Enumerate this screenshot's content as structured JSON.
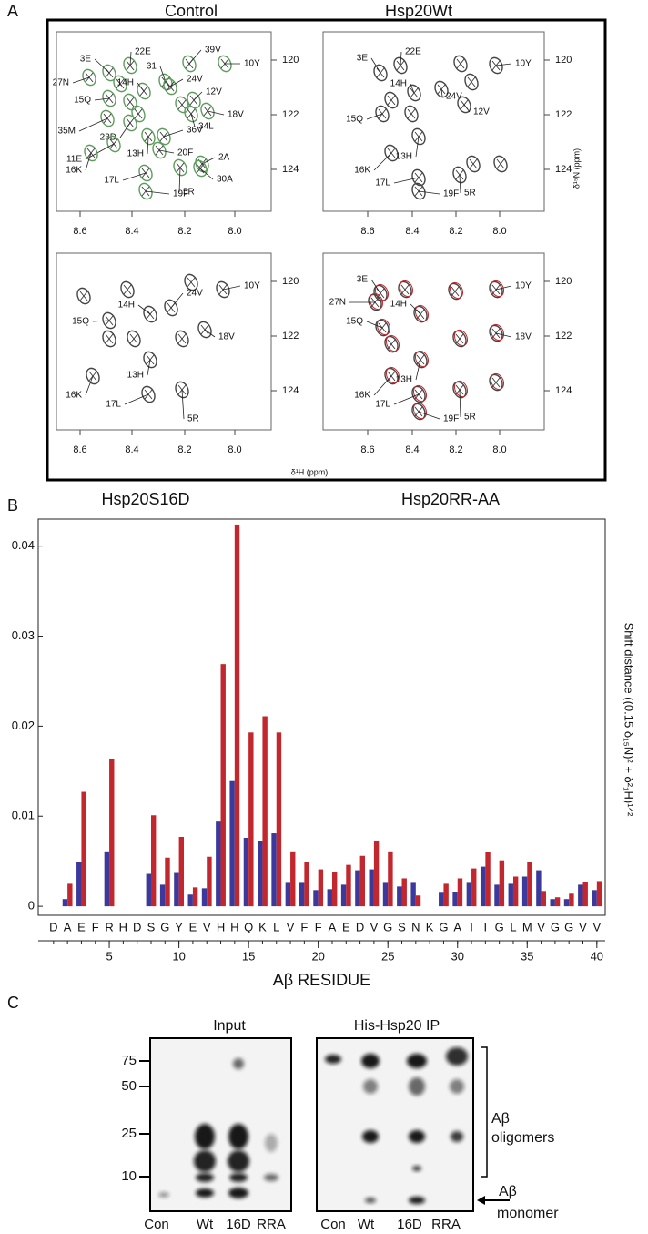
{
  "panel_a": {
    "label": "A",
    "spectra": [
      {
        "title": "Control",
        "peaks": [
          "3E",
          "22E",
          "39V",
          "10Y",
          "31",
          "24V",
          "14H",
          "27N",
          "15Q",
          "12V",
          "18V",
          "35M",
          "23D",
          "36V",
          "34L",
          "11E",
          "13H",
          "20F",
          "2A",
          "16K",
          "17L",
          "30A",
          "19F",
          "5R"
        ]
      },
      {
        "title": "Hsp20Wt",
        "peaks": [
          "3E",
          "22E",
          "10Y",
          "24V",
          "14H",
          "12V",
          "15Q",
          "13H",
          "16K",
          "17L",
          "19F",
          "5R"
        ]
      },
      {
        "title": "Hsp20S16D",
        "peaks": [
          "10Y",
          "24V",
          "14H",
          "15Q",
          "18V",
          "13H",
          "16K",
          "17L",
          "5R"
        ]
      },
      {
        "title": "Hsp20RR-AA",
        "peaks": [
          "3E",
          "27N",
          "10Y",
          "14H",
          "15Q",
          "18V",
          "13H",
          "16K",
          "17L",
          "19F",
          "5R"
        ]
      }
    ],
    "x_axis_label": "δ¹H (ppm)",
    "y_axis_label": "δ¹⁵N (ppm)",
    "xticks": [
      "8.6",
      "8.4",
      "8.2",
      "8.0"
    ],
    "yticks": [
      "120",
      "122",
      "124"
    ]
  },
  "panel_b_label": "B",
  "chart_data": {
    "type": "bar",
    "x": [
      1,
      2,
      3,
      4,
      5,
      6,
      7,
      8,
      9,
      10,
      11,
      12,
      13,
      14,
      15,
      16,
      17,
      18,
      19,
      20,
      21,
      22,
      23,
      24,
      25,
      26,
      27,
      28,
      29,
      30,
      31,
      32,
      33,
      34,
      35,
      36,
      37,
      38,
      39,
      40
    ],
    "residue_labels": [
      "D",
      "A",
      "E",
      "F",
      "R",
      "H",
      "D",
      "S",
      "G",
      "Y",
      "E",
      "V",
      "H",
      "H",
      "Q",
      "K",
      "L",
      "V",
      "F",
      "F",
      "A",
      "E",
      "D",
      "V",
      "G",
      "S",
      "N",
      "K",
      "G",
      "A",
      "I",
      "I",
      "G",
      "L",
      "M",
      "V",
      "G",
      "G",
      "V",
      "V"
    ],
    "xlim": [
      -0.1,
      40.6
    ],
    "xticks": [
      5,
      10,
      15,
      20,
      25,
      30,
      35,
      40
    ],
    "ylim": [
      -0.001,
      0.043
    ],
    "yticks": [
      0,
      0.01,
      0.02,
      0.03,
      0.04
    ],
    "x_axis_label": "Aβ RESIDUE",
    "y_axis_label": "Shift distance ((0.15 δ₁₅N)² + δ²₁H)¹ᐟ²",
    "series": [
      {
        "color": "#3b3a9c",
        "values": [
          null,
          0.0008,
          0.0049,
          null,
          0.0061,
          null,
          null,
          0.0036,
          0.0024,
          0.0037,
          0.0013,
          0.002,
          0.0094,
          0.0139,
          0.0076,
          0.0072,
          0.0081,
          0.0026,
          0.0026,
          0.0018,
          0.0019,
          0.0024,
          0.004,
          0.0041,
          0.0026,
          0.0022,
          0.0026,
          null,
          0.0015,
          0.0016,
          0.0026,
          0.0044,
          0.0024,
          0.0025,
          0.0033,
          0.004,
          0.0008,
          0.0008,
          0.0024,
          0.0018
        ]
      },
      {
        "color": "#c1272d",
        "values": [
          null,
          0.0025,
          0.0127,
          null,
          0.0164,
          null,
          null,
          0.0101,
          0.0054,
          0.0077,
          0.0021,
          0.0055,
          0.0269,
          0.0424,
          0.0193,
          0.0211,
          0.0193,
          0.0061,
          0.0049,
          0.0041,
          0.0038,
          0.0046,
          0.0056,
          0.0073,
          0.0061,
          0.0031,
          0.0012,
          null,
          0.0025,
          0.0031,
          0.0042,
          0.006,
          0.0051,
          0.0033,
          0.0049,
          0.0017,
          0.001,
          0.0014,
          0.0027,
          0.0028
        ]
      }
    ]
  },
  "panel_c": {
    "label": "C",
    "input_title": "Input",
    "ip_title": "His-Hsp20 IP",
    "markers": [
      "75",
      "50",
      "25",
      "10"
    ],
    "input_lanes": [
      "Con",
      "Wt",
      "16D",
      "RRA"
    ],
    "ip_lanes": [
      "Con",
      "Wt",
      "16D",
      "RRA"
    ],
    "oligomer_label": [
      "Aβ",
      "oligomers"
    ],
    "monomer_label": [
      "Aβ",
      "monomer"
    ]
  }
}
